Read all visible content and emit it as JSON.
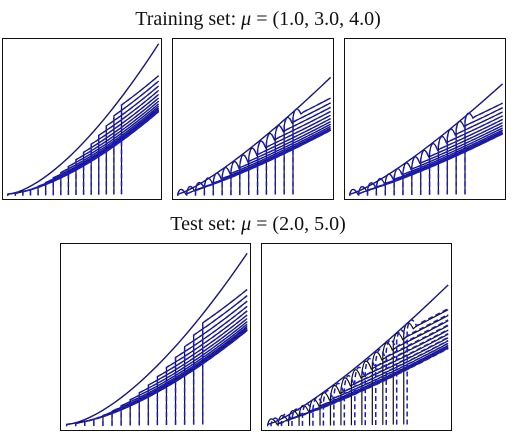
{
  "figure": {
    "train_heading_prefix": "Training  set: ",
    "train_heading_mu": "μ",
    "train_heading_values": " = (1.0, 3.0, 4.0)",
    "test_heading_prefix": "Test set: ",
    "test_heading_mu": "μ",
    "test_heading_values": " = (2.0, 5.0)"
  },
  "colors": {
    "reference": "#111111",
    "approximation": "#1a1ac8",
    "frame": "#111111"
  },
  "chart_data": [
    {
      "type": "line",
      "set": "Training",
      "mu": 1.0,
      "grid": false,
      "series": [
        {
          "style": "solid",
          "color": "#111111"
        },
        {
          "style": "dashed",
          "color": "#1a1ac8"
        }
      ],
      "curve_family": {
        "count": 16,
        "front_onset_fraction": [
          0.0,
          0.72
        ],
        "plateau_fraction": [
          0.03,
          0.97
        ],
        "boundary_shape": "rising concave edge from lower-left to upper-right"
      }
    },
    {
      "type": "line",
      "set": "Training",
      "mu": 3.0,
      "grid": false,
      "series": [
        {
          "style": "solid",
          "color": "#111111"
        },
        {
          "style": "dashed",
          "color": "#1a1ac8"
        }
      ],
      "curve_family": {
        "count": 14,
        "front_onset_fraction": [
          0.0,
          0.72
        ],
        "plateau_fraction": [
          0.03,
          0.76
        ],
        "boundary_shape": "rising edge with overshoot near each front"
      }
    },
    {
      "type": "line",
      "set": "Training",
      "mu": 4.0,
      "grid": false,
      "series": [
        {
          "style": "solid",
          "color": "#111111"
        },
        {
          "style": "dashed",
          "color": "#1a1ac8"
        }
      ],
      "curve_family": {
        "count": 14,
        "front_onset_fraction": [
          0.0,
          0.72
        ],
        "plateau_fraction": [
          0.03,
          0.72
        ],
        "boundary_shape": "rising edge with overshoot near each front"
      }
    },
    {
      "type": "line",
      "set": "Test",
      "mu": 2.0,
      "grid": false,
      "series": [
        {
          "style": "solid",
          "color": "#111111"
        },
        {
          "style": "dashed",
          "color": "#1a1ac8"
        }
      ],
      "curve_family": {
        "count": 16,
        "front_onset_fraction": [
          0.0,
          0.72
        ],
        "plateau_fraction": [
          0.03,
          0.95
        ],
        "boundary_shape": "rising concave edge from lower-left to upper-right"
      }
    },
    {
      "type": "line",
      "set": "Test",
      "mu": 5.0,
      "grid": false,
      "series": [
        {
          "style": "solid",
          "color": "#111111"
        },
        {
          "style": "dashed",
          "color": "#1a1ac8"
        }
      ],
      "curve_family": {
        "count": 14,
        "front_onset_fraction": [
          0.0,
          0.72
        ],
        "plateau_fraction": [
          0.03,
          0.78
        ],
        "boundary_shape": "rising edge with large overshoot; dashed fronts lag solid"
      }
    }
  ]
}
